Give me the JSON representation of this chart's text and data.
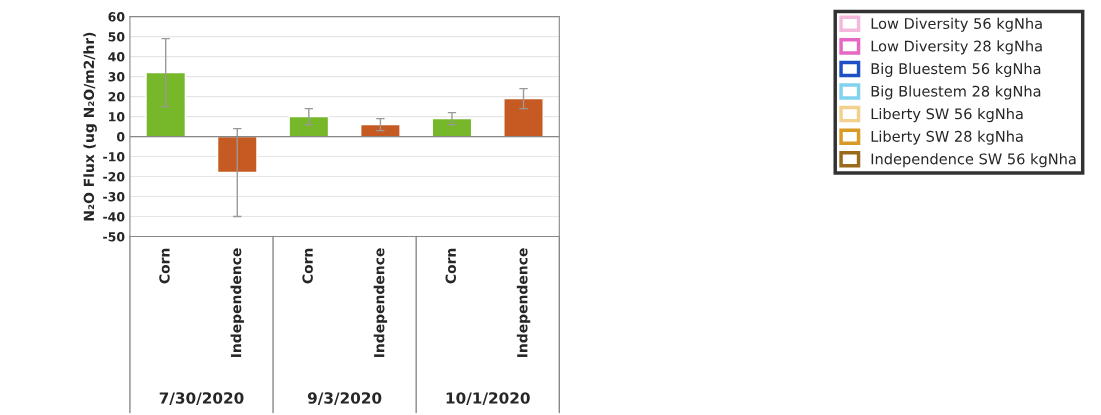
{
  "chart_data": {
    "type": "bar",
    "ylabel": "N₂O Flux (ug N₂O/m2/hr)",
    "categories": [
      "Corn",
      "Independence",
      "Corn",
      "Independence",
      "Corn",
      "Independence"
    ],
    "annotations": [
      "7/30/2020",
      "9/3/2020",
      "10/1/2020"
    ],
    "series": [
      {
        "colors": [
          "#76b82a",
          "#c55a22",
          "#76b82a",
          "#c55a22",
          "#76b82a",
          "#c55a22"
        ],
        "values": [
          32,
          -18,
          10,
          6,
          9,
          19
        ],
        "errors": [
          17,
          22,
          4,
          3,
          3,
          5
        ]
      },
      {
        "name": "Low Diversity 56 kgNha",
        "color": "#f4b8dc",
        "values": [
          null,
          null,
          null,
          null,
          null,
          null
        ]
      },
      {
        "name": "Low Diversity 28 kgNha",
        "color": "#e468c4",
        "values": [
          null,
          null,
          null,
          null,
          null,
          null
        ]
      },
      {
        "name": "Big Bluestem 56 kgNha",
        "color": "#1f4fc4",
        "values": [
          null,
          null,
          null,
          null,
          null,
          null
        ]
      },
      {
        "name": "Big Bluestem 28 kgNha",
        "color": "#80d2ef",
        "values": [
          null,
          null,
          null,
          null,
          null,
          null
        ]
      },
      {
        "name": "Liberty SW 56 kgNha",
        "color": "#f3d08e",
        "values": [
          null,
          null,
          null,
          null,
          null,
          null
        ]
      },
      {
        "name": "Liberty SW 28 kgNha",
        "color": "#d99a28",
        "values": [
          null,
          null,
          null,
          null,
          null,
          null
        ]
      },
      {
        "name": "Independence SW 56 kgNha",
        "color": "#9a6a1c",
        "values": [
          null,
          null,
          null,
          null,
          null,
          null
        ]
      }
    ],
    "ylim": [
      -50,
      60
    ],
    "yticks": [
      -50,
      -40,
      -30,
      -20,
      -10,
      0,
      10,
      20,
      30,
      40,
      50,
      60
    ],
    "grid": "y",
    "legend": "right"
  }
}
